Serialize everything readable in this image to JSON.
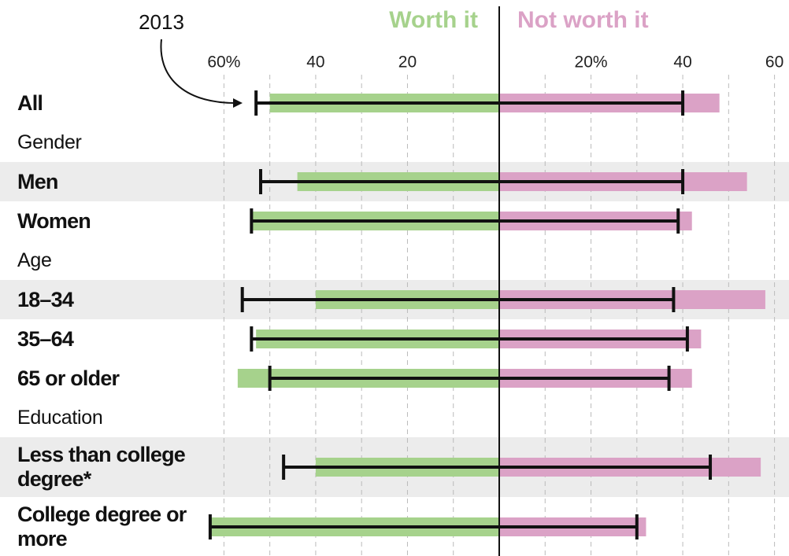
{
  "chart_data": {
    "type": "diverging-bar",
    "categories": [
      "All",
      "Gender",
      "Men",
      "Women",
      "Age",
      "18–34",
      "35–64",
      "65 or older",
      "Education",
      "Less than college degree*",
      "College degree or more"
    ],
    "series": [
      {
        "name": "Worth it",
        "color": "#a6d28c",
        "side": "left",
        "values": [
          50,
          null,
          44,
          54,
          null,
          40,
          53,
          57,
          null,
          40,
          63
        ]
      },
      {
        "name": "Not worth it",
        "color": "#dba2c6",
        "side": "right",
        "values": [
          48,
          null,
          54,
          42,
          null,
          58,
          44,
          42,
          null,
          57,
          32
        ]
      }
    ],
    "markers": {
      "name": "2013",
      "color": "#111111",
      "left": [
        53,
        null,
        52,
        54,
        null,
        56,
        54,
        50,
        null,
        47,
        63
      ],
      "right": [
        40,
        null,
        40,
        39,
        null,
        38,
        41,
        37,
        null,
        46,
        30
      ]
    },
    "xlim": [
      0,
      63.5
    ],
    "left_ticks": [
      {
        "value": 60,
        "label": "60%"
      },
      40,
      20
    ],
    "right_ticks": [
      {
        "value": 20,
        "label": "20%"
      },
      40,
      60
    ],
    "grid": [
      10,
      20,
      30,
      40,
      50,
      60
    ]
  }
}
